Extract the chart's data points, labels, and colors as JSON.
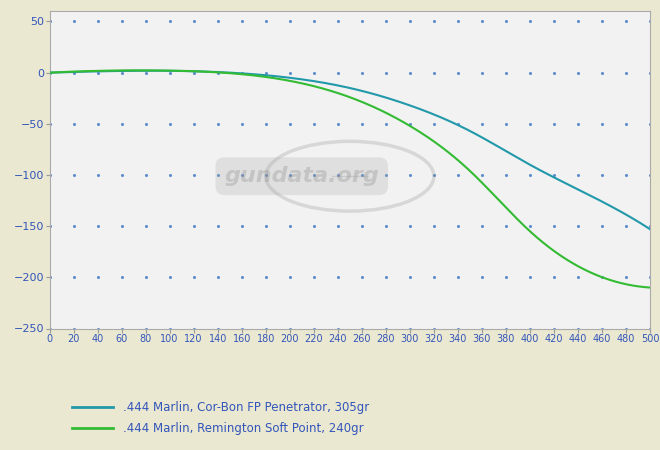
{
  "bg_outer": "#eae8d0",
  "bg_inner": "#f2f2f2",
  "xlim": [
    0,
    500
  ],
  "ylim": [
    -250,
    60
  ],
  "yticks": [
    50,
    0,
    -50,
    -100,
    -150,
    -200,
    -250
  ],
  "xticks": [
    0,
    20,
    40,
    60,
    80,
    100,
    120,
    140,
    160,
    180,
    200,
    220,
    240,
    260,
    280,
    300,
    320,
    340,
    360,
    380,
    400,
    420,
    440,
    460,
    480,
    500
  ],
  "tick_color": "#3355bb",
  "grid_color": "#5588cc",
  "grid_x_step": 20,
  "grid_y_step": 50,
  "line1_label": ".444 Marlin, Cor-Bon FP Penetrator, 305gr",
  "line1_color": "#2299aa",
  "line2_label": ".444 Marlin, Remington Soft Point, 240gr",
  "line2_color": "#33bb33",
  "series1_x": [
    0,
    50,
    100,
    150,
    200,
    250,
    300,
    350,
    400,
    450,
    500
  ],
  "series1_y": [
    0.0,
    1.5,
    1.8,
    0.0,
    -5.0,
    -15.0,
    -32.0,
    -57.0,
    -90.0,
    -120.0,
    -153.0
  ],
  "series2_x": [
    0,
    50,
    100,
    150,
    200,
    250,
    300,
    350,
    400,
    450,
    500
  ],
  "series2_y": [
    0.0,
    2.0,
    2.0,
    -0.5,
    -8.0,
    -24.0,
    -52.0,
    -96.0,
    -155.0,
    -195.0,
    -210.0
  ],
  "watermark_text": "gundata.org",
  "watermark_color": "#888888",
  "watermark_alpha": 0.3,
  "spine_color": "#aaaaaa"
}
